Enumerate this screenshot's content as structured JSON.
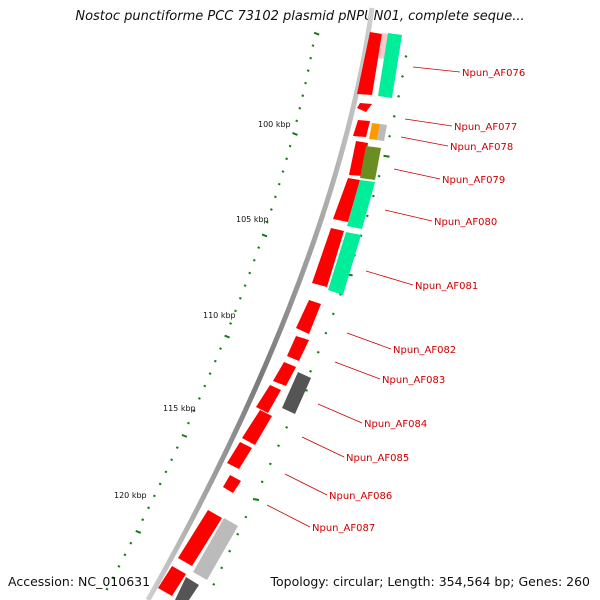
{
  "title": "Nostoc punctiforme PCC 73102 plasmid pNPUN01, complete seque...",
  "accession": "Accession: NC_010631",
  "topology": "Topology: circular; Length: 354,564 bp; Genes: 260",
  "kbp_labels": [
    "100 kbp",
    "105 kbp",
    "110 kbp",
    "115 kbp",
    "120 kbp"
  ],
  "genes": [
    {
      "label": "Npun_AF076"
    },
    {
      "label": "Npun_AF077"
    },
    {
      "label": "Npun_AF078"
    },
    {
      "label": "Npun_AF079"
    },
    {
      "label": "Npun_AF080"
    },
    {
      "label": "Npun_AF081"
    },
    {
      "label": "Npun_AF082"
    },
    {
      "label": "Npun_AF083"
    },
    {
      "label": "Npun_AF084"
    },
    {
      "label": "Npun_AF085"
    },
    {
      "label": "Npun_AF086"
    },
    {
      "label": "Npun_AF087"
    }
  ],
  "colors": {
    "backbone": "#8a8a8a",
    "cds": "#ff0000",
    "gene_label": "#cc0000",
    "tick": "#1a7a1a",
    "cog_green": "#00ee99",
    "cog_orange": "#ff9900",
    "cog_olive": "#6b8e23",
    "cog_gray": "#bbbbbb",
    "cog_darkgray": "#555555",
    "cog_pink": "#ffb0b0"
  }
}
